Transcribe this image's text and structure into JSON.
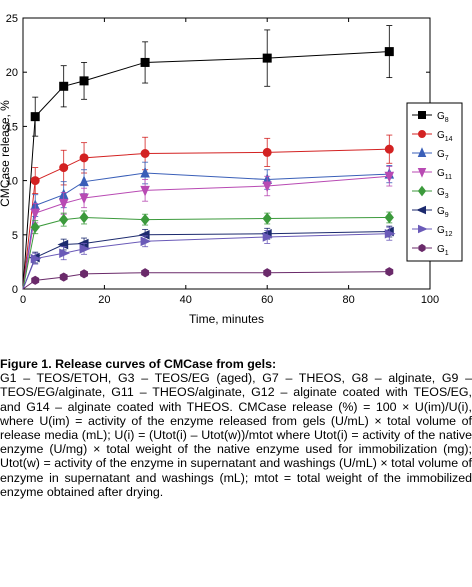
{
  "chart_data": {
    "type": "line",
    "xlabel": "Time, minutes",
    "ylabel": "CMCase release, %",
    "xlim": [
      0,
      100
    ],
    "ylim": [
      0,
      25
    ],
    "xticks": [
      0,
      20,
      40,
      60,
      80,
      100
    ],
    "yticks": [
      0,
      5,
      10,
      15,
      20,
      25
    ],
    "legend_position": "right",
    "x": [
      0,
      3,
      10,
      15,
      30,
      60,
      90
    ],
    "series": [
      {
        "name": "G8",
        "label_main": "G",
        "label_sub": "8",
        "color": "#000000",
        "marker": "square",
        "filled": true,
        "values": [
          0,
          15.9,
          18.7,
          19.2,
          20.9,
          21.3,
          21.9
        ],
        "errors": [
          0,
          1.8,
          1.9,
          1.7,
          1.9,
          2.6,
          2.4
        ]
      },
      {
        "name": "G14",
        "label_main": "G",
        "label_sub": "14",
        "color": "#d32222",
        "marker": "circle",
        "filled": true,
        "values": [
          0,
          10.0,
          11.2,
          12.1,
          12.5,
          12.6,
          12.9
        ],
        "errors": [
          0,
          1.2,
          1.6,
          1.4,
          1.5,
          1.3,
          1.3
        ]
      },
      {
        "name": "G7",
        "label_main": "G",
        "label_sub": "7",
        "color": "#3a5fb8",
        "marker": "triangle-up",
        "filled": true,
        "values": [
          0,
          7.7,
          8.7,
          9.9,
          10.7,
          10.1,
          10.6
        ],
        "errors": [
          0,
          1.0,
          1.2,
          1.1,
          1.0,
          0.9,
          0.8
        ]
      },
      {
        "name": "G11",
        "label_main": "G",
        "label_sub": "11",
        "color": "#b84ab3",
        "marker": "triangle-down",
        "filled": true,
        "values": [
          0,
          7.0,
          7.9,
          8.4,
          9.1,
          9.5,
          10.4
        ],
        "errors": [
          0,
          0.9,
          1.0,
          0.9,
          1.0,
          0.9,
          0.9
        ]
      },
      {
        "name": "G3",
        "label_main": "G",
        "label_sub": "3",
        "color": "#3c9a3c",
        "marker": "diamond",
        "filled": true,
        "values": [
          0,
          5.7,
          6.4,
          6.6,
          6.4,
          6.5,
          6.6
        ],
        "errors": [
          0,
          0.6,
          0.6,
          0.6,
          0.5,
          0.5,
          0.5
        ]
      },
      {
        "name": "G9",
        "label_main": "G",
        "label_sub": "9",
        "color": "#1c2a6e",
        "marker": "triangle-left",
        "filled": true,
        "values": [
          0,
          2.9,
          4.1,
          4.2,
          5.0,
          5.1,
          5.3
        ],
        "errors": [
          0,
          0.5,
          0.5,
          0.5,
          0.5,
          0.5,
          0.5
        ]
      },
      {
        "name": "G12",
        "label_main": "G",
        "label_sub": "12",
        "color": "#6a5ab8",
        "marker": "triangle-right",
        "filled": true,
        "values": [
          0,
          2.8,
          3.3,
          3.7,
          4.4,
          4.8,
          5.1
        ],
        "errors": [
          0,
          0.5,
          0.6,
          0.5,
          0.5,
          0.6,
          0.6
        ]
      },
      {
        "name": "G1",
        "label_main": "G",
        "label_sub": "1",
        "color": "#6a2a6a",
        "marker": "hexagon",
        "filled": true,
        "values": [
          0,
          0.8,
          1.1,
          1.4,
          1.5,
          1.5,
          1.6
        ],
        "errors": [
          0,
          0.2,
          0.2,
          0.2,
          0.2,
          0.2,
          0.2
        ]
      }
    ]
  },
  "caption": {
    "title": "Figure 1. Release curves of CMCase from gels:",
    "body": "G1 – TEOS/ETOH, G3 – TEOS/EG (aged), G7 – THEOS, G8 – alginate, G9 – TEOS/EG/alginate, G11 – THEOS/alginate, G12 – alginate coated with TEOS/EG, and G14 – alginate coated with THEOS. CMCase release (%) = 100 × U(im)/U(i), where U(im) = activity of the enzyme released from gels (U/mL) × total volume of release media (mL); U(i) = (Utot(i) – Utot(w))/mtot where Utot(i) = activity of the native enzyme (U/mg) × total weight of the native enzyme used for immobilization (mg); Utot(w) = activity of the enzyme in supernatant and washings (U/mL) × total volume of enzyme in supernatant and washings (mL); mtot = total weight of the immobilized enzyme obtained after drying."
  }
}
